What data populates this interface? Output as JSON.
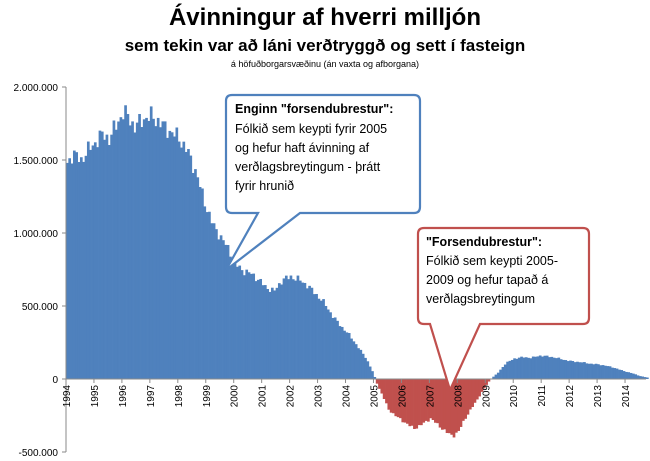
{
  "titles": {
    "title": "Ávinningur af hverri milljón",
    "subtitle": "sem tekin var að láni verðtryggð og sett í fasteign",
    "note": "á höfuðborgarsvæðinu (án vaxta og afborgana)"
  },
  "chart_data": {
    "type": "bar",
    "ylim": [
      -500000,
      2000000
    ],
    "y_ticks": [
      "2.000.000",
      "1.500.000",
      "1.000.000",
      "500.000",
      "0",
      "-500.000"
    ],
    "y_tick_values": [
      2000000,
      1500000,
      1000000,
      500000,
      0,
      -500000
    ],
    "x_range": [
      1994,
      2014.75
    ],
    "x_ticks": [
      "1994",
      "1995",
      "1996",
      "1997",
      "1998",
      "1999",
      "2000",
      "2001",
      "2002",
      "2003",
      "2004",
      "2005",
      "2006",
      "2007",
      "2008",
      "2009",
      "2010",
      "2011",
      "2012",
      "2013",
      "2014"
    ],
    "grid": false,
    "positive_color": "#4f81bd",
    "negative_color": "#c0504d",
    "series_keypoints": [
      [
        1994.0,
        1480000
      ],
      [
        1994.2,
        1540000
      ],
      [
        1994.5,
        1500000
      ],
      [
        1994.8,
        1580000
      ],
      [
        1995.0,
        1620000
      ],
      [
        1995.3,
        1680000
      ],
      [
        1995.5,
        1640000
      ],
      [
        1995.8,
        1760000
      ],
      [
        1996.0,
        1820000
      ],
      [
        1996.2,
        1800000
      ],
      [
        1996.4,
        1720000
      ],
      [
        1996.7,
        1780000
      ],
      [
        1997.0,
        1800000
      ],
      [
        1997.3,
        1760000
      ],
      [
        1997.5,
        1720000
      ],
      [
        1997.8,
        1680000
      ],
      [
        1998.0,
        1650000
      ],
      [
        1998.3,
        1560000
      ],
      [
        1998.6,
        1420000
      ],
      [
        1998.9,
        1220000
      ],
      [
        1999.2,
        1060000
      ],
      [
        1999.5,
        970000
      ],
      [
        1999.8,
        880000
      ],
      [
        2000.0,
        790000
      ],
      [
        2000.3,
        740000
      ],
      [
        2000.6,
        720000
      ],
      [
        2000.9,
        670000
      ],
      [
        2001.1,
        630000
      ],
      [
        2001.4,
        600000
      ],
      [
        2001.7,
        680000
      ],
      [
        2002.0,
        700000
      ],
      [
        2002.3,
        680000
      ],
      [
        2002.6,
        640000
      ],
      [
        2002.9,
        580000
      ],
      [
        2003.2,
        520000
      ],
      [
        2003.5,
        430000
      ],
      [
        2003.8,
        360000
      ],
      [
        2004.1,
        300000
      ],
      [
        2004.4,
        220000
      ],
      [
        2004.7,
        140000
      ],
      [
        2004.95,
        40000
      ],
      [
        2005.1,
        -40000
      ],
      [
        2005.3,
        -120000
      ],
      [
        2005.5,
        -210000
      ],
      [
        2005.8,
        -260000
      ],
      [
        2006.1,
        -300000
      ],
      [
        2006.4,
        -340000
      ],
      [
        2006.7,
        -310000
      ],
      [
        2007.0,
        -270000
      ],
      [
        2007.3,
        -320000
      ],
      [
        2007.6,
        -370000
      ],
      [
        2007.8,
        -390000
      ],
      [
        2008.0,
        -360000
      ],
      [
        2008.2,
        -280000
      ],
      [
        2008.5,
        -190000
      ],
      [
        2008.8,
        -100000
      ],
      [
        2009.0,
        -40000
      ],
      [
        2009.15,
        0
      ],
      [
        2009.4,
        40000
      ],
      [
        2009.7,
        110000
      ],
      [
        2010.0,
        140000
      ],
      [
        2010.3,
        150000
      ],
      [
        2010.6,
        145000
      ],
      [
        2010.9,
        160000
      ],
      [
        2011.2,
        155000
      ],
      [
        2011.5,
        145000
      ],
      [
        2011.8,
        130000
      ],
      [
        2012.1,
        120000
      ],
      [
        2012.4,
        115000
      ],
      [
        2012.7,
        105000
      ],
      [
        2013.0,
        100000
      ],
      [
        2013.3,
        90000
      ],
      [
        2013.6,
        75000
      ],
      [
        2013.9,
        55000
      ],
      [
        2014.2,
        40000
      ],
      [
        2014.5,
        20000
      ],
      [
        2014.75,
        10000
      ]
    ],
    "annotations": [
      {
        "title": "Enginn \"forsendubrestur\":",
        "lines": [
          "Fólkið sem keypti fyrir 2005",
          "og hefur haft ávinning af",
          "verðlagsbreytingum - þrátt",
          "fyrir hrunið"
        ],
        "color": "#4f81bd"
      },
      {
        "title": "\"Forsendubrestur\":",
        "lines": [
          "Fólkið sem keypti 2005-",
          "2009 og hefur tapað á",
          "verðlagsbreytingum"
        ],
        "color": "#c0504d"
      }
    ]
  }
}
